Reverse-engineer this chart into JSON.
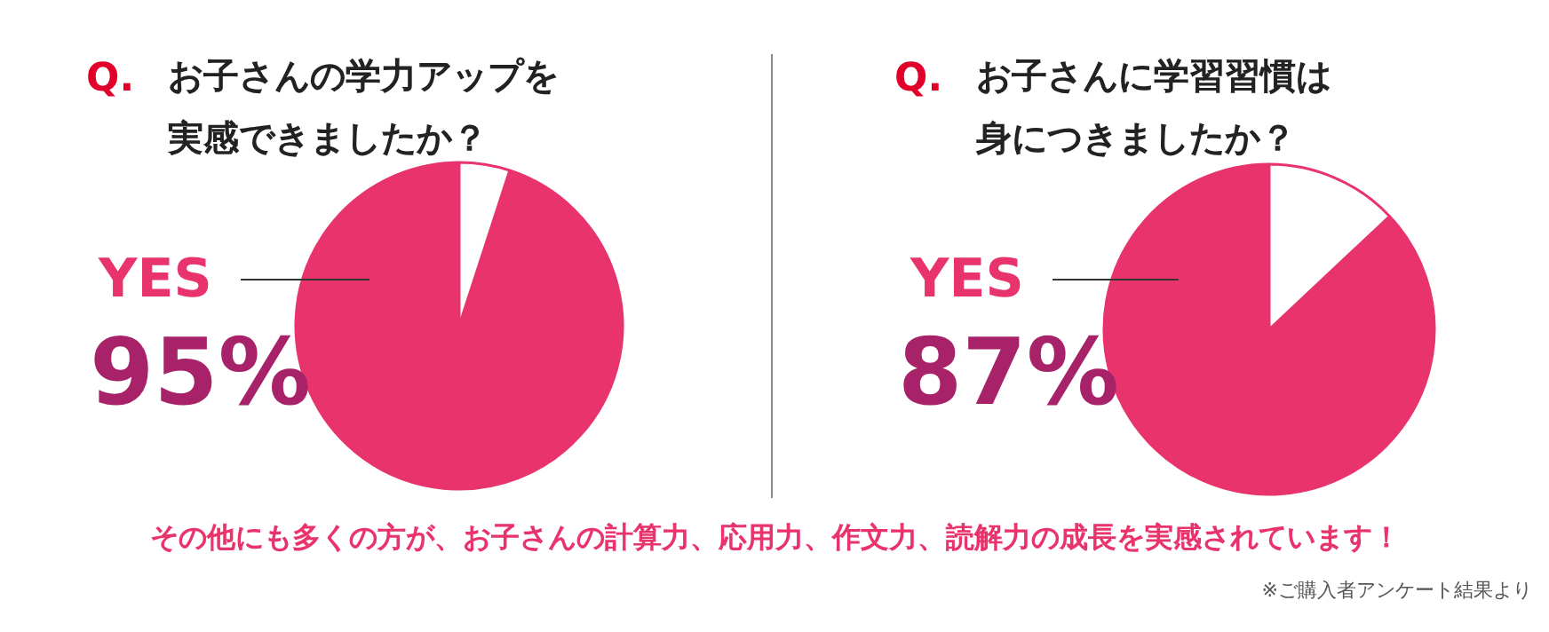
{
  "chart_data": [
    {
      "type": "pie",
      "title": "Q. お子さんの学力アップを実感できましたか？",
      "categories": [
        "YES",
        null
      ],
      "values": [
        95,
        5
      ],
      "colors": [
        "#e8336d",
        "#ffffff"
      ],
      "value_labels": [
        "95%",
        null
      ],
      "annotations": [
        "その他にも多くの方が、お子さんの計算力、応用力、作文力、読解力の成長を実感されています！"
      ]
    },
    {
      "type": "pie",
      "title": "Q. お子さんに学習習慣は身につきましたか？",
      "categories": [
        "YES",
        null
      ],
      "values": [
        87,
        13
      ],
      "colors": [
        "#e8336d",
        "#ffffff"
      ],
      "value_labels": [
        "87%",
        null
      ],
      "annotations": [
        "※ご購入者アンケート結果より"
      ]
    }
  ]
}
